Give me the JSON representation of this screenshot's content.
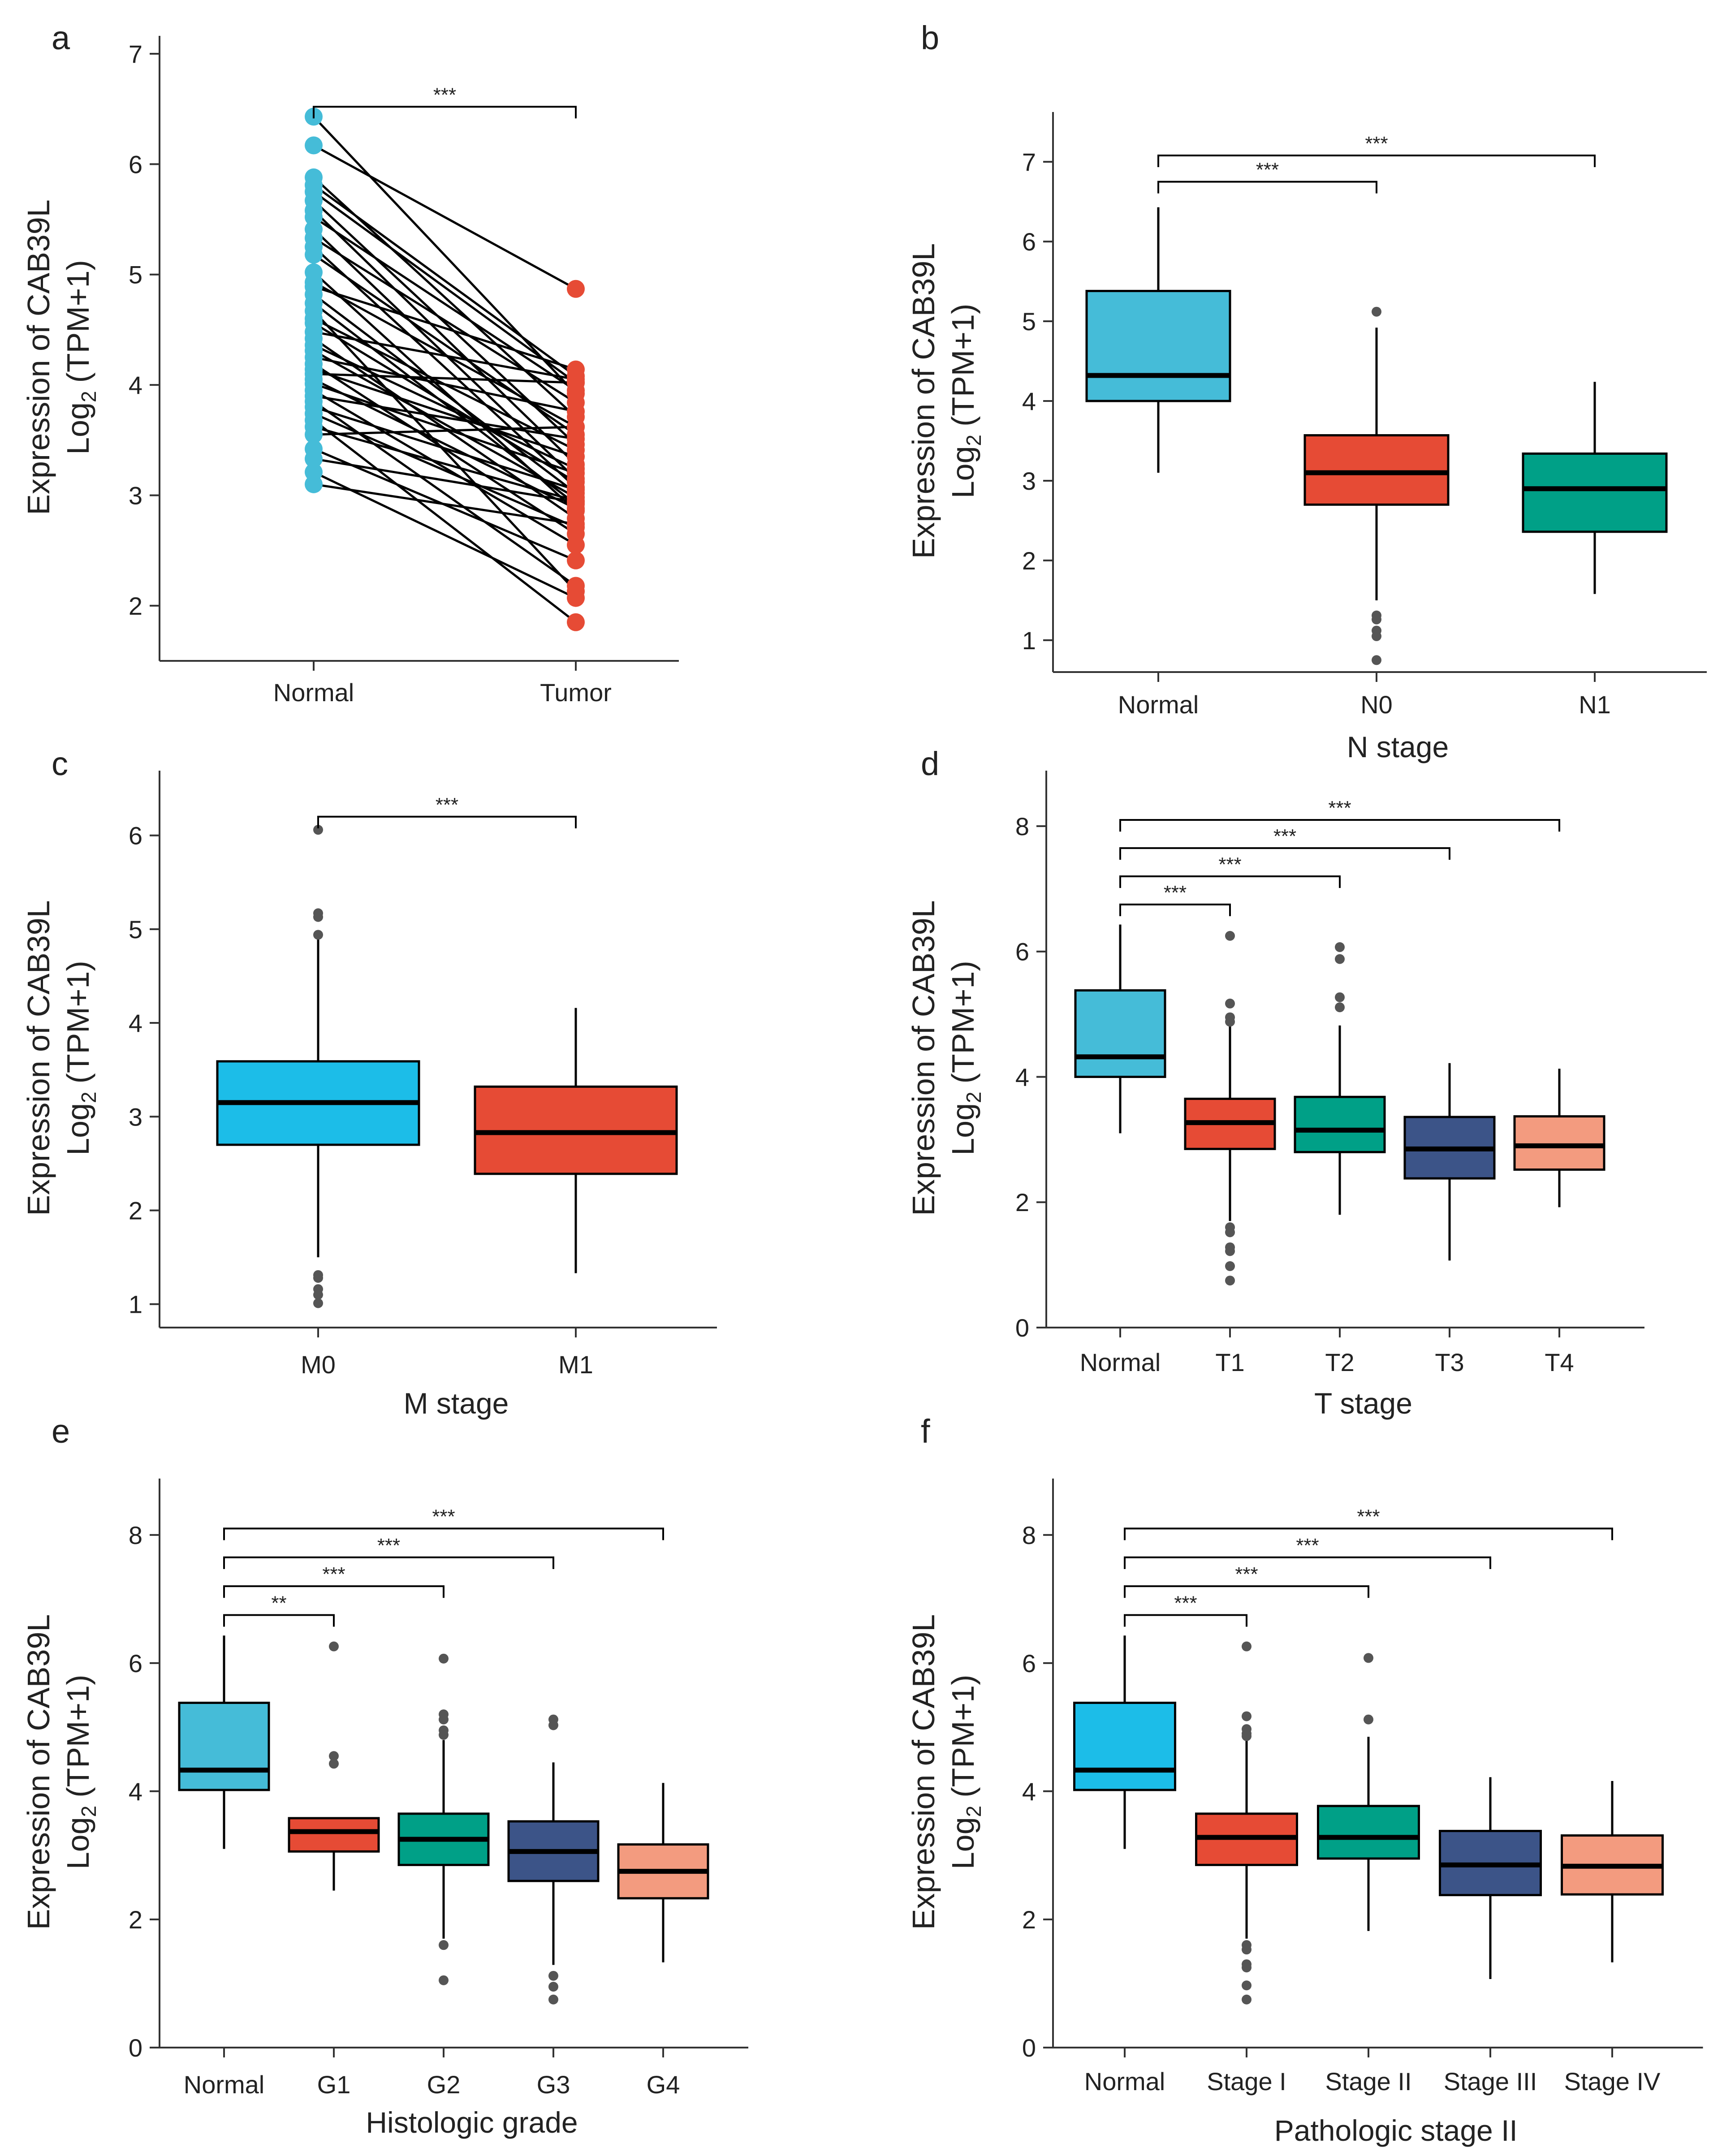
{
  "figure": {
    "y_title_line1": "Expression of CAB39L",
    "y_title_line2_main": "Log",
    "y_title_line2_sub": "2",
    "y_title_line2_rest": "(TPM+1)"
  },
  "colors": {
    "normal_cyan": "#45bcd8",
    "blue_bright": "#1cbde8",
    "red": "#e64b35",
    "teal": "#00a087",
    "navy": "#3c5488",
    "salmon": "#f39b7f",
    "outlier": "#555555"
  },
  "chart_data": [
    {
      "id": "a",
      "panel_label": "a",
      "type": "paired_dot",
      "xlabel": "",
      "ylabel": "Expression of CAB39L Log2 (TPM+1)",
      "ylim": [
        1.5,
        7
      ],
      "yticks": [
        2,
        3,
        4,
        5,
        6,
        7
      ],
      "categories": [
        "Normal",
        "Tumor"
      ],
      "colors": [
        "#45bcd8",
        "#e64b35"
      ],
      "pairs": [
        [
          6.43,
          3.92
        ],
        [
          6.17,
          4.87
        ],
        [
          5.88,
          3.71
        ],
        [
          5.81,
          4.08
        ],
        [
          5.75,
          4.02
        ],
        [
          5.67,
          3.46
        ],
        [
          5.58,
          3.28
        ],
        [
          5.52,
          3.95
        ],
        [
          5.41,
          3.15
        ],
        [
          5.33,
          3.84
        ],
        [
          5.25,
          3.07
        ],
        [
          5.18,
          3.55
        ],
        [
          5.02,
          2.86
        ],
        [
          4.93,
          3.62
        ],
        [
          4.89,
          4.14
        ],
        [
          4.82,
          3.02
        ],
        [
          4.74,
          2.92
        ],
        [
          4.67,
          2.13
        ],
        [
          4.6,
          3.41
        ],
        [
          4.56,
          3.12
        ],
        [
          4.48,
          4.05
        ],
        [
          4.42,
          2.79
        ],
        [
          4.36,
          3.24
        ],
        [
          4.31,
          2.98
        ],
        [
          4.25,
          3.76
        ],
        [
          4.19,
          2.65
        ],
        [
          4.14,
          3.35
        ],
        [
          4.1,
          4.02
        ],
        [
          4.05,
          2.88
        ],
        [
          4.01,
          3.2
        ],
        [
          3.95,
          2.55
        ],
        [
          3.9,
          3.51
        ],
        [
          3.85,
          2.18
        ],
        [
          3.8,
          3.05
        ],
        [
          3.74,
          2.71
        ],
        [
          3.68,
          1.85
        ],
        [
          3.62,
          2.95
        ],
        [
          3.55,
          3.62
        ],
        [
          3.42,
          2.41
        ],
        [
          3.33,
          2.94
        ],
        [
          3.21,
          2.07
        ],
        [
          3.1,
          2.74
        ]
      ],
      "significance": [
        {
          "from": "Normal",
          "to": "Tumor",
          "label": "***",
          "y": 6.52
        }
      ]
    },
    {
      "id": "b",
      "panel_label": "b",
      "type": "box",
      "xlabel": "N stage",
      "ylabel": "Expression of CAB39L Log2 (TPM+1)",
      "ylim": [
        0.6,
        7.4
      ],
      "yticks": [
        1,
        2,
        3,
        4,
        5,
        6,
        7
      ],
      "categories": [
        "Normal",
        "N0",
        "N1"
      ],
      "boxes": [
        {
          "name": "Normal",
          "min": 3.1,
          "q1": 4.0,
          "median": 4.32,
          "q3": 5.38,
          "max": 6.43,
          "color": "#45bcd8",
          "outliers": []
        },
        {
          "name": "N0",
          "min": 1.5,
          "q1": 2.7,
          "median": 3.1,
          "q3": 3.57,
          "max": 4.92,
          "color": "#e64b35",
          "outliers": [
            5.12,
            1.31,
            1.26,
            1.12,
            1.05,
            0.75
          ]
        },
        {
          "name": "N1",
          "min": 1.58,
          "q1": 2.36,
          "median": 2.9,
          "q3": 3.34,
          "max": 4.24,
          "color": "#00a087",
          "outliers": []
        }
      ],
      "significance": [
        {
          "from": "Normal",
          "to": "N0",
          "label": "***",
          "y": 6.75
        },
        {
          "from": "Normal",
          "to": "N1",
          "label": "***",
          "y": 7.08
        }
      ]
    },
    {
      "id": "c",
      "panel_label": "c",
      "type": "box",
      "xlabel": "M stage",
      "ylabel": "Expression of CAB39L Log2 (TPM+1)",
      "ylim": [
        0.75,
        6.5
      ],
      "yticks": [
        1,
        2,
        3,
        4,
        5,
        6
      ],
      "categories": [
        "M0",
        "M1"
      ],
      "boxes": [
        {
          "name": "M0",
          "min": 1.5,
          "q1": 2.7,
          "median": 3.15,
          "q3": 3.59,
          "max": 4.92,
          "color": "#1cbde8",
          "outliers": [
            6.06,
            5.17,
            5.13,
            4.94,
            1.31,
            1.28,
            1.16,
            1.1,
            1.01
          ]
        },
        {
          "name": "M1",
          "min": 1.33,
          "q1": 2.39,
          "median": 2.83,
          "q3": 3.32,
          "max": 4.16,
          "color": "#e64b35",
          "outliers": []
        }
      ],
      "significance": [
        {
          "from": "M0",
          "to": "M1",
          "label": "***",
          "y": 6.2
        }
      ]
    },
    {
      "id": "d",
      "panel_label": "d",
      "type": "box",
      "xlabel": "T stage",
      "ylabel": "Expression of CAB39L Log2 (TPM+1)",
      "ylim": [
        0,
        8.6
      ],
      "yticks": [
        0,
        2,
        4,
        6,
        8
      ],
      "categories": [
        "Normal",
        "T1",
        "T2",
        "T3",
        "T4"
      ],
      "boxes": [
        {
          "name": "Normal",
          "min": 3.1,
          "q1": 4.0,
          "median": 4.32,
          "q3": 5.38,
          "max": 6.43,
          "color": "#45bcd8",
          "outliers": []
        },
        {
          "name": "T1",
          "min": 1.7,
          "q1": 2.85,
          "median": 3.27,
          "q3": 3.65,
          "max": 4.86,
          "color": "#e64b35",
          "outliers": [
            6.25,
            5.17,
            4.95,
            4.88,
            1.6,
            1.52,
            1.28,
            1.22,
            0.98,
            0.75
          ]
        },
        {
          "name": "T2",
          "min": 1.8,
          "q1": 2.8,
          "median": 3.15,
          "q3": 3.68,
          "max": 4.82,
          "color": "#00a087",
          "outliers": [
            6.07,
            5.88,
            5.27,
            5.11
          ]
        },
        {
          "name": "T3",
          "min": 1.07,
          "q1": 2.38,
          "median": 2.85,
          "q3": 3.36,
          "max": 4.22,
          "color": "#3c5488",
          "outliers": []
        },
        {
          "name": "T4",
          "min": 1.92,
          "q1": 2.52,
          "median": 2.9,
          "q3": 3.37,
          "max": 4.13,
          "color": "#f39b7f",
          "outliers": []
        }
      ],
      "significance": [
        {
          "from": "Normal",
          "to": "T1",
          "label": "***",
          "y": 6.75
        },
        {
          "from": "Normal",
          "to": "T2",
          "label": "***",
          "y": 7.2
        },
        {
          "from": "Normal",
          "to": "T3",
          "label": "***",
          "y": 7.65
        },
        {
          "from": "Normal",
          "to": "T4",
          "label": "***",
          "y": 8.1
        }
      ]
    },
    {
      "id": "e",
      "panel_label": "e",
      "type": "box",
      "xlabel": "Histologic grade",
      "ylabel": "Expression of CAB39L Log2 (TPM+1)",
      "ylim": [
        0,
        8.6
      ],
      "yticks": [
        0,
        2,
        4,
        6,
        8
      ],
      "categories": [
        "Normal",
        "G1",
        "G2",
        "G3",
        "G4"
      ],
      "boxes": [
        {
          "name": "Normal",
          "min": 3.1,
          "q1": 4.02,
          "median": 4.33,
          "q3": 5.38,
          "max": 6.43,
          "color": "#45bcd8",
          "outliers": []
        },
        {
          "name": "G1",
          "min": 2.45,
          "q1": 3.06,
          "median": 3.37,
          "q3": 3.58,
          "max": 3.58,
          "color": "#e64b35",
          "outliers": [
            6.26,
            4.55,
            4.43
          ]
        },
        {
          "name": "G2",
          "min": 1.7,
          "q1": 2.85,
          "median": 3.25,
          "q3": 3.65,
          "max": 4.8,
          "color": "#00a087",
          "outliers": [
            6.07,
            5.2,
            5.12,
            4.95,
            4.88,
            1.6,
            1.05
          ]
        },
        {
          "name": "G3",
          "min": 1.29,
          "q1": 2.6,
          "median": 3.06,
          "q3": 3.53,
          "max": 4.45,
          "color": "#3c5488",
          "outliers": [
            5.12,
            5.03,
            1.12,
            0.95,
            0.75
          ]
        },
        {
          "name": "G4",
          "min": 1.33,
          "q1": 2.33,
          "median": 2.75,
          "q3": 3.17,
          "max": 4.13,
          "color": "#f39b7f",
          "outliers": []
        }
      ],
      "significance": [
        {
          "from": "Normal",
          "to": "G1",
          "label": "**",
          "y": 6.75
        },
        {
          "from": "Normal",
          "to": "G2",
          "label": "***",
          "y": 7.2
        },
        {
          "from": "Normal",
          "to": "G3",
          "label": "***",
          "y": 7.65
        },
        {
          "from": "Normal",
          "to": "G4",
          "label": "***",
          "y": 8.1
        }
      ]
    },
    {
      "id": "f",
      "panel_label": "f",
      "type": "box",
      "xlabel": "Pathologic stage II",
      "ylabel": "Expression of CAB39L Log2 (TPM+1)",
      "ylim": [
        0,
        8.6
      ],
      "yticks": [
        0,
        2,
        4,
        6,
        8
      ],
      "categories": [
        "Normal",
        "Stage I",
        "Stage II",
        "Stage III",
        "Stage IV"
      ],
      "boxes": [
        {
          "name": "Normal",
          "min": 3.1,
          "q1": 4.02,
          "median": 4.33,
          "q3": 5.38,
          "max": 6.43,
          "color": "#1cbde8",
          "outliers": []
        },
        {
          "name": "Stage I",
          "min": 1.7,
          "q1": 2.85,
          "median": 3.28,
          "q3": 3.65,
          "max": 4.86,
          "color": "#e64b35",
          "outliers": [
            6.26,
            5.17,
            4.97,
            4.9,
            4.86,
            1.6,
            1.53,
            1.3,
            1.25,
            0.97,
            0.75
          ]
        },
        {
          "name": "Stage II",
          "min": 1.82,
          "q1": 2.95,
          "median": 3.28,
          "q3": 3.77,
          "max": 4.85,
          "color": "#00a087",
          "outliers": [
            6.08,
            5.12
          ]
        },
        {
          "name": "Stage III",
          "min": 1.07,
          "q1": 2.38,
          "median": 2.85,
          "q3": 3.38,
          "max": 4.22,
          "color": "#3c5488",
          "outliers": []
        },
        {
          "name": "Stage IV",
          "min": 1.33,
          "q1": 2.39,
          "median": 2.83,
          "q3": 3.31,
          "max": 4.16,
          "color": "#f39b7f",
          "outliers": []
        }
      ],
      "significance": [
        {
          "from": "Normal",
          "to": "Stage I",
          "label": "***",
          "y": 6.75
        },
        {
          "from": "Normal",
          "to": "Stage II",
          "label": "***",
          "y": 7.2
        },
        {
          "from": "Normal",
          "to": "Stage III",
          "label": "***",
          "y": 7.65
        },
        {
          "from": "Normal",
          "to": "Stage IV",
          "label": "***",
          "y": 8.1
        }
      ]
    }
  ]
}
